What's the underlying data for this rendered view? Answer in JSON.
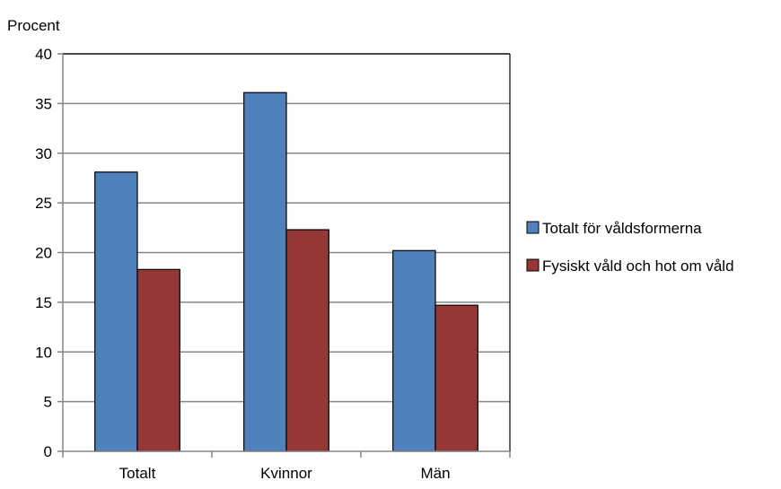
{
  "chart_data": {
    "type": "bar",
    "ylabel": "Procent",
    "xlabel": "",
    "categories": [
      "Totalt",
      "Kvinnor",
      "Män"
    ],
    "series": [
      {
        "name": "Totalt för våldsformerna",
        "values": [
          28.1,
          36.1,
          20.2
        ],
        "color": "#4F81BD"
      },
      {
        "name": "Fysiskt våld och hot om våld",
        "values": [
          18.3,
          22.3,
          14.7
        ],
        "color": "#953735"
      }
    ],
    "ylim": [
      0,
      40
    ],
    "yticks": [
      0,
      5,
      10,
      15,
      20,
      25,
      30,
      35,
      40
    ],
    "grid": true,
    "legend": "right"
  }
}
